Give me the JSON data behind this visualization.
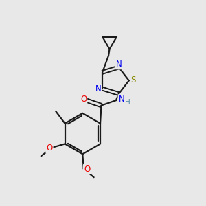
{
  "bg_color": "#e8e8e8",
  "bond_color": "#1a1a1a",
  "N_color": "#0000ee",
  "S_color": "#888800",
  "O_color": "#ee0000",
  "C_color": "#1a1a1a",
  "H_color": "#5588aa",
  "line_width": 1.6,
  "font_size": 8.5,
  "figsize": [
    3.0,
    3.0
  ],
  "dpi": 100,
  "xlim": [
    0,
    10
  ],
  "ylim": [
    0,
    10
  ]
}
